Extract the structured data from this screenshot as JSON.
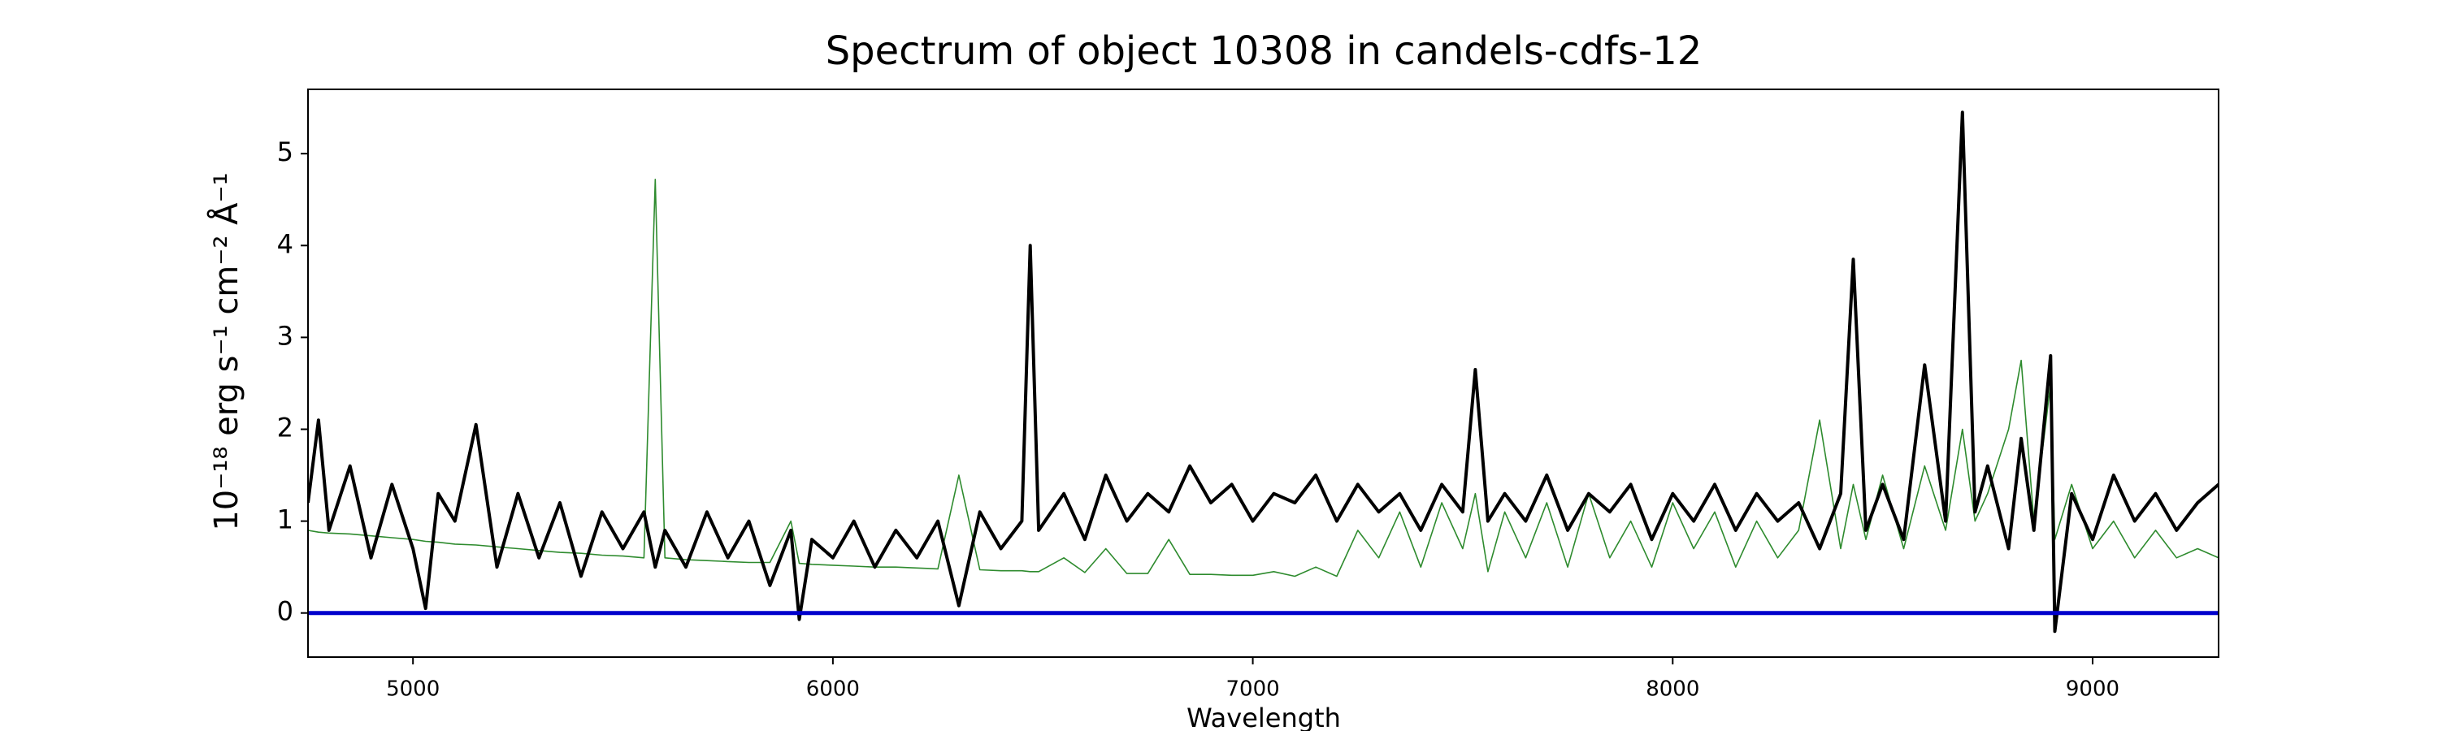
{
  "chart_data": {
    "type": "line",
    "title": "Spectrum of object 10308 in candels-cdfs-12",
    "xlabel": "Wavelength",
    "ylabel": "10⁻¹⁸ erg s⁻¹ cm⁻² Å⁻¹",
    "x": [
      4750,
      4775,
      4800,
      4850,
      4900,
      4950,
      5000,
      5030,
      5060,
      5100,
      5150,
      5200,
      5250,
      5300,
      5350,
      5400,
      5450,
      5500,
      5550,
      5577,
      5600,
      5650,
      5700,
      5750,
      5800,
      5850,
      5900,
      5920,
      5950,
      6000,
      6050,
      6100,
      6150,
      6200,
      6250,
      6300,
      6350,
      6400,
      6450,
      6470,
      6490,
      6550,
      6600,
      6650,
      6700,
      6750,
      6800,
      6850,
      6900,
      6950,
      7000,
      7050,
      7100,
      7150,
      7200,
      7250,
      7300,
      7350,
      7400,
      7450,
      7500,
      7530,
      7560,
      7600,
      7650,
      7700,
      7750,
      7800,
      7850,
      7900,
      7950,
      8000,
      8050,
      8100,
      8150,
      8200,
      8250,
      8300,
      8350,
      8400,
      8430,
      8460,
      8500,
      8550,
      8600,
      8650,
      8690,
      8720,
      8750,
      8800,
      8830,
      8860,
      8900,
      8910,
      8950,
      9000,
      9050,
      9100,
      9150,
      9200,
      9250,
      9300
    ],
    "series": [
      {
        "color": "#2e8b2e",
        "width": 1.6,
        "values": [
          0.9,
          0.88,
          0.87,
          0.86,
          0.84,
          0.82,
          0.8,
          0.78,
          0.77,
          0.75,
          0.74,
          0.72,
          0.7,
          0.68,
          0.66,
          0.65,
          0.63,
          0.62,
          0.6,
          4.72,
          0.6,
          0.58,
          0.57,
          0.56,
          0.55,
          0.55,
          1.0,
          0.54,
          0.53,
          0.52,
          0.51,
          0.5,
          0.5,
          0.49,
          0.48,
          1.5,
          0.47,
          0.46,
          0.46,
          0.45,
          0.45,
          0.6,
          0.44,
          0.7,
          0.43,
          0.43,
          0.8,
          0.42,
          0.42,
          0.41,
          0.41,
          0.45,
          0.4,
          0.5,
          0.4,
          0.9,
          0.6,
          1.1,
          0.5,
          1.2,
          0.7,
          1.3,
          0.45,
          1.1,
          0.6,
          1.2,
          0.5,
          1.3,
          0.6,
          1.0,
          0.5,
          1.2,
          0.7,
          1.1,
          0.5,
          1.0,
          0.6,
          0.9,
          2.1,
          0.7,
          1.4,
          0.8,
          1.5,
          0.7,
          1.6,
          0.9,
          2.0,
          1.0,
          1.3,
          2.0,
          2.75,
          1.0,
          2.5,
          0.8,
          1.4,
          0.7,
          1.0,
          0.6,
          0.9,
          0.6,
          0.7,
          0.6
        ]
      },
      {
        "color": "#000000",
        "width": 4,
        "values": [
          1.2,
          2.1,
          0.9,
          1.6,
          0.6,
          1.4,
          0.7,
          0.05,
          1.3,
          1.0,
          2.05,
          0.5,
          1.3,
          0.6,
          1.2,
          0.4,
          1.1,
          0.7,
          1.1,
          0.5,
          0.9,
          0.5,
          1.1,
          0.6,
          1.0,
          0.3,
          0.9,
          -0.07,
          0.8,
          0.6,
          1.0,
          0.5,
          0.9,
          0.6,
          1.0,
          0.08,
          1.1,
          0.7,
          1.0,
          4.0,
          0.9,
          1.3,
          0.8,
          1.5,
          1.0,
          1.3,
          1.1,
          1.6,
          1.2,
          1.4,
          1.0,
          1.3,
          1.2,
          1.5,
          1.0,
          1.4,
          1.1,
          1.3,
          0.9,
          1.4,
          1.1,
          2.65,
          1.0,
          1.3,
          1.0,
          1.5,
          0.9,
          1.3,
          1.1,
          1.4,
          0.8,
          1.3,
          1.0,
          1.4,
          0.9,
          1.3,
          1.0,
          1.2,
          0.7,
          1.3,
          3.85,
          0.9,
          1.4,
          0.8,
          2.7,
          1.0,
          5.45,
          1.1,
          1.6,
          0.7,
          1.9,
          0.9,
          2.8,
          -0.2,
          1.3,
          0.8,
          1.5,
          1.0,
          1.3,
          0.9,
          1.2,
          1.4
        ]
      }
    ],
    "hlines": [
      {
        "y": 0,
        "color": "#0000cc"
      }
    ],
    "xlim": [
      4750,
      9300
    ],
    "ylim": [
      -0.48,
      5.7
    ],
    "xticks": [
      5000,
      6000,
      7000,
      8000,
      9000
    ],
    "yticks": [
      0,
      1,
      2,
      3,
      4,
      5
    ]
  }
}
